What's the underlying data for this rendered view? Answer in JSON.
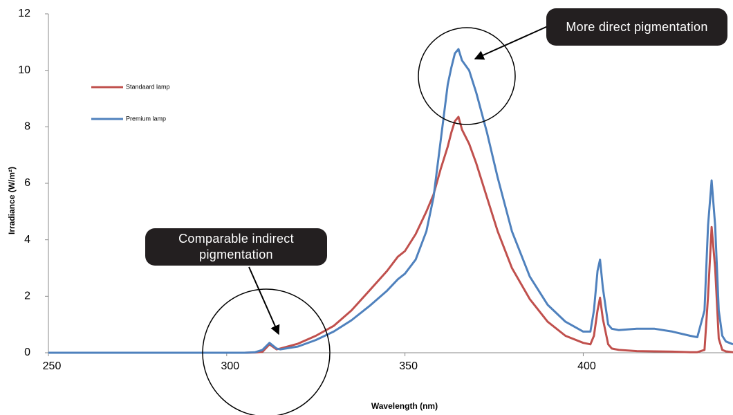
{
  "chart_data": {
    "type": "line",
    "x_label": "Wavelength (nm)",
    "y_label": "Irradiance (W/m²)",
    "x": [
      250,
      260,
      270,
      280,
      290,
      300,
      305,
      308,
      310,
      312,
      314,
      315,
      320,
      325,
      330,
      335,
      340,
      345,
      348,
      350,
      353,
      356,
      358,
      360,
      362,
      363,
      364,
      365,
      366,
      368,
      370,
      373,
      376,
      380,
      385,
      390,
      395,
      400,
      402,
      403,
      404,
      404.7,
      405.5,
      407,
      408,
      410,
      415,
      420,
      425,
      430,
      432,
      434,
      435,
      436,
      437,
      438,
      439,
      440,
      442
    ],
    "series": [
      {
        "name": "Standaard lamp",
        "color": "#c0504d",
        "values": [
          0,
          0,
          0,
          0,
          0,
          0,
          0,
          0.01,
          0.03,
          0.3,
          0.12,
          0.15,
          0.32,
          0.6,
          0.95,
          1.5,
          2.2,
          2.9,
          3.4,
          3.6,
          4.2,
          5.0,
          5.6,
          6.5,
          7.3,
          7.8,
          8.2,
          8.35,
          7.9,
          7.4,
          6.7,
          5.5,
          4.3,
          3.0,
          1.9,
          1.1,
          0.6,
          0.35,
          0.3,
          0.6,
          1.5,
          1.95,
          1.2,
          0.3,
          0.15,
          0.1,
          0.06,
          0.05,
          0.04,
          0.02,
          0.02,
          0.1,
          2.0,
          4.45,
          3.0,
          0.5,
          0.1,
          0.05,
          0.02
        ]
      },
      {
        "name": "Premium lamp",
        "color": "#4f81bd",
        "values": [
          0,
          0,
          0,
          0,
          0,
          0,
          0,
          0.02,
          0.1,
          0.35,
          0.15,
          0.12,
          0.22,
          0.45,
          0.75,
          1.15,
          1.65,
          2.2,
          2.6,
          2.8,
          3.3,
          4.3,
          5.5,
          7.5,
          9.5,
          10.1,
          10.6,
          10.75,
          10.35,
          10.0,
          9.2,
          7.8,
          6.2,
          4.3,
          2.7,
          1.7,
          1.1,
          0.75,
          0.75,
          1.5,
          2.9,
          3.3,
          2.3,
          1.0,
          0.85,
          0.8,
          0.85,
          0.85,
          0.75,
          0.6,
          0.55,
          1.5,
          4.5,
          6.1,
          4.5,
          1.5,
          0.6,
          0.4,
          0.3
        ]
      }
    ],
    "xlim": [
      250,
      442
    ],
    "xticks": [
      250,
      300,
      350,
      400
    ],
    "ylim": [
      0,
      12
    ],
    "yticks": [
      0,
      2,
      4,
      6,
      8,
      10,
      12
    ],
    "legend": "upper-left",
    "annotations": [
      "More direct pigmentation",
      "Comparable indirect pigmentation"
    ]
  }
}
